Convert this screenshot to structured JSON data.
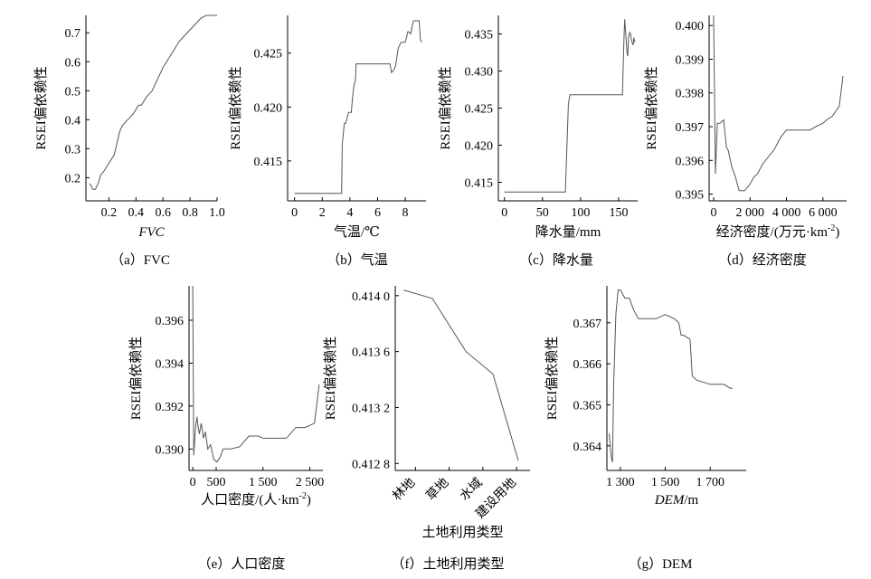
{
  "ylabel": "RSEI偏依赖性",
  "chart_data": [
    {
      "id": "a",
      "type": "line",
      "caption": "（a）FVC",
      "xlabel": "FVC",
      "xlabel_italic": true,
      "ylabel": "RSEI偏依赖性",
      "xlim": [
        0.03,
        1.0
      ],
      "ylim": [
        0.12,
        0.76
      ],
      "xticks": [
        0.2,
        0.4,
        0.6,
        0.8,
        1.0
      ],
      "xtick_labels": [
        "0.2",
        "0.4",
        "0.6",
        "0.8",
        "1.0"
      ],
      "yticks": [
        0.2,
        0.3,
        0.4,
        0.5,
        0.6,
        0.7
      ],
      "ytick_labels": [
        "0.2",
        "0.3",
        "0.4",
        "0.5",
        "0.6",
        "0.7"
      ],
      "x": [
        0.06,
        0.08,
        0.1,
        0.12,
        0.14,
        0.16,
        0.2,
        0.24,
        0.26,
        0.28,
        0.3,
        0.34,
        0.38,
        0.42,
        0.44,
        0.48,
        0.52,
        0.56,
        0.6,
        0.64,
        0.68,
        0.72,
        0.76,
        0.8,
        0.84,
        0.88,
        0.92,
        0.96,
        1.0
      ],
      "y": [
        0.18,
        0.16,
        0.16,
        0.18,
        0.21,
        0.22,
        0.25,
        0.28,
        0.32,
        0.36,
        0.38,
        0.4,
        0.42,
        0.45,
        0.45,
        0.48,
        0.5,
        0.54,
        0.58,
        0.61,
        0.64,
        0.67,
        0.69,
        0.71,
        0.73,
        0.75,
        0.76,
        0.76,
        0.76
      ]
    },
    {
      "id": "b",
      "type": "line",
      "caption": "（b）气温",
      "xlabel": "气温/℃",
      "ylabel": "RSEI偏依赖性",
      "xlim": [
        -0.5,
        9.5
      ],
      "ylim": [
        0.4113,
        0.4285
      ],
      "xticks": [
        0,
        2,
        4,
        6,
        8
      ],
      "xtick_labels": [
        "0",
        "2",
        "4",
        "6",
        "8"
      ],
      "yticks": [
        0.415,
        0.42,
        0.425
      ],
      "ytick_labels": [
        "0.415",
        "0.420",
        "0.425"
      ],
      "x": [
        0,
        3.4,
        3.45,
        3.6,
        3.7,
        3.9,
        4.1,
        4.2,
        4.3,
        4.4,
        4.45,
        5.0,
        6.0,
        6.9,
        7.0,
        7.2,
        7.3,
        7.5,
        7.7,
        8.0,
        8.2,
        8.4,
        8.5,
        8.6,
        8.8,
        9.0,
        9.1,
        9.2
      ],
      "y": [
        0.412,
        0.412,
        0.4165,
        0.4185,
        0.4185,
        0.4195,
        0.4195,
        0.421,
        0.422,
        0.4225,
        0.424,
        0.424,
        0.424,
        0.424,
        0.4232,
        0.4235,
        0.4238,
        0.4255,
        0.426,
        0.426,
        0.427,
        0.4268,
        0.4275,
        0.428,
        0.428,
        0.428,
        0.4262,
        0.426
      ]
    },
    {
      "id": "c",
      "type": "line",
      "caption": "（c）降水量",
      "xlabel": "降水量/mm",
      "ylabel": "RSEI偏依赖性",
      "xlim": [
        -8,
        175
      ],
      "ylim": [
        0.4125,
        0.4375
      ],
      "xticks": [
        0,
        50,
        100,
        150
      ],
      "xtick_labels": [
        "0",
        "50",
        "100",
        "150"
      ],
      "yticks": [
        0.415,
        0.42,
        0.425,
        0.43,
        0.435
      ],
      "ytick_labels": [
        "0.415",
        "0.420",
        "0.425",
        "0.430",
        "0.435"
      ],
      "x": [
        0,
        79,
        80,
        82,
        84,
        86,
        88,
        155,
        156,
        157,
        158,
        159,
        160,
        161,
        162,
        163,
        164,
        165,
        166,
        167,
        168,
        169,
        170,
        171,
        172
      ],
      "y": [
        0.4137,
        0.4137,
        0.4137,
        0.4195,
        0.4255,
        0.4268,
        0.4268,
        0.4268,
        0.4305,
        0.4345,
        0.437,
        0.4355,
        0.434,
        0.4325,
        0.432,
        0.4345,
        0.435,
        0.4352,
        0.4348,
        0.434,
        0.4338,
        0.4335,
        0.4345,
        0.434,
        0.434
      ]
    },
    {
      "id": "d",
      "type": "line",
      "caption": "（d）经济密度",
      "xlabel": "经济密度/(万元·km",
      "xlabel_sup": "-2",
      "xlabel_tail": ")",
      "ylabel": "RSEI偏依赖性",
      "xlim": [
        -250,
        7300
      ],
      "ylim": [
        0.3948,
        0.4003
      ],
      "xticks": [
        0,
        2000,
        4000,
        6000
      ],
      "xtick_labels": [
        "0",
        "2 000",
        "4 000",
        "6 000"
      ],
      "yticks": [
        0.395,
        0.396,
        0.397,
        0.398,
        0.399,
        0.4
      ],
      "ytick_labels": [
        "0.395",
        "0.396",
        "0.397",
        "0.398",
        "0.399",
        "0.400"
      ],
      "x": [
        0,
        100,
        200,
        350,
        550,
        700,
        800,
        1000,
        1200,
        1400,
        1500,
        1700,
        2000,
        2200,
        2400,
        2700,
        3000,
        3300,
        3500,
        3700,
        4000,
        4500,
        5000,
        5300,
        5600,
        6000,
        6200,
        6500,
        6900,
        7100
      ],
      "y": [
        0.4003,
        0.3956,
        0.3971,
        0.3971,
        0.3972,
        0.3964,
        0.3963,
        0.3958,
        0.3955,
        0.3951,
        0.3951,
        0.3951,
        0.3953,
        0.3955,
        0.3956,
        0.3959,
        0.3961,
        0.3963,
        0.3965,
        0.3967,
        0.3969,
        0.3969,
        0.3969,
        0.3969,
        0.397,
        0.3971,
        0.3972,
        0.3973,
        0.3976,
        0.3985
      ]
    },
    {
      "id": "e",
      "type": "line",
      "caption": "（e）人口密度",
      "xlabel": "人口密度/(人·km",
      "xlabel_sup": "-2",
      "xlabel_tail": ")",
      "ylabel": "RSEI偏依赖性",
      "xlim": [
        -80,
        2780
      ],
      "ylim": [
        0.389,
        0.3976
      ],
      "xticks": [
        0,
        500,
        1500,
        2500
      ],
      "xtick_labels": [
        "0",
        "500",
        "1 500",
        "2 500"
      ],
      "yticks": [
        0.39,
        0.392,
        0.394,
        0.396
      ],
      "ytick_labels": [
        "0.390",
        "0.392",
        "0.394",
        "0.396"
      ],
      "x": [
        0,
        20,
        60,
        90,
        110,
        140,
        180,
        230,
        270,
        320,
        380,
        450,
        520,
        580,
        650,
        800,
        1000,
        1200,
        1400,
        1500,
        1700,
        2000,
        2200,
        2400,
        2600,
        2700
      ],
      "y": [
        0.3976,
        0.3897,
        0.391,
        0.3915,
        0.3911,
        0.3907,
        0.3912,
        0.3905,
        0.3908,
        0.39,
        0.3902,
        0.3895,
        0.3894,
        0.3896,
        0.39,
        0.39,
        0.3901,
        0.3906,
        0.3906,
        0.3905,
        0.3905,
        0.3905,
        0.391,
        0.391,
        0.3912,
        0.393
      ]
    },
    {
      "id": "f",
      "type": "line",
      "caption": "（f）土地利用类型",
      "xlabel": "土地利用类型",
      "ylabel": "RSEI偏依赖性",
      "categories": [
        "林地",
        "草地",
        "水域",
        "建设用地"
      ],
      "ylim": [
        0.41275,
        0.41407
      ],
      "yticks": [
        0.4128,
        0.4132,
        0.4136,
        0.414
      ],
      "ytick_labels": [
        "0.412 8",
        "0.413 2",
        "0.413 6",
        "0.414 0"
      ],
      "x": [
        -0.35,
        0.5,
        1.5,
        2.3,
        3.05
      ],
      "y": [
        0.41404,
        0.41398,
        0.4136,
        0.41344,
        0.41282
      ]
    },
    {
      "id": "g",
      "type": "line",
      "caption": "（g）DEM",
      "xlabel": "DEM",
      "xlabel_italic": true,
      "xlabel_tail": "/m",
      "ylabel": "RSEI偏依赖性",
      "xlim": [
        1240,
        1860
      ],
      "ylim": [
        0.3634,
        0.3679
      ],
      "xticks": [
        1300,
        1500,
        1700
      ],
      "xtick_labels": [
        "1 300",
        "1 500",
        "1 700"
      ],
      "yticks": [
        0.364,
        0.365,
        0.366,
        0.367
      ],
      "ytick_labels": [
        "0.364",
        "0.365",
        "0.366",
        "0.367"
      ],
      "x": [
        1250,
        1260,
        1265,
        1270,
        1280,
        1290,
        1300,
        1310,
        1320,
        1340,
        1360,
        1380,
        1420,
        1460,
        1500,
        1540,
        1560,
        1570,
        1580,
        1610,
        1620,
        1640,
        1700,
        1760,
        1790,
        1800
      ],
      "y": [
        0.3643,
        0.3637,
        0.3636,
        0.3655,
        0.3672,
        0.3678,
        0.3678,
        0.3677,
        0.3676,
        0.3676,
        0.3673,
        0.3671,
        0.3671,
        0.3671,
        0.3672,
        0.3671,
        0.367,
        0.3667,
        0.3667,
        0.3666,
        0.3657,
        0.3656,
        0.3655,
        0.3655,
        0.3654,
        0.3654
      ]
    }
  ]
}
